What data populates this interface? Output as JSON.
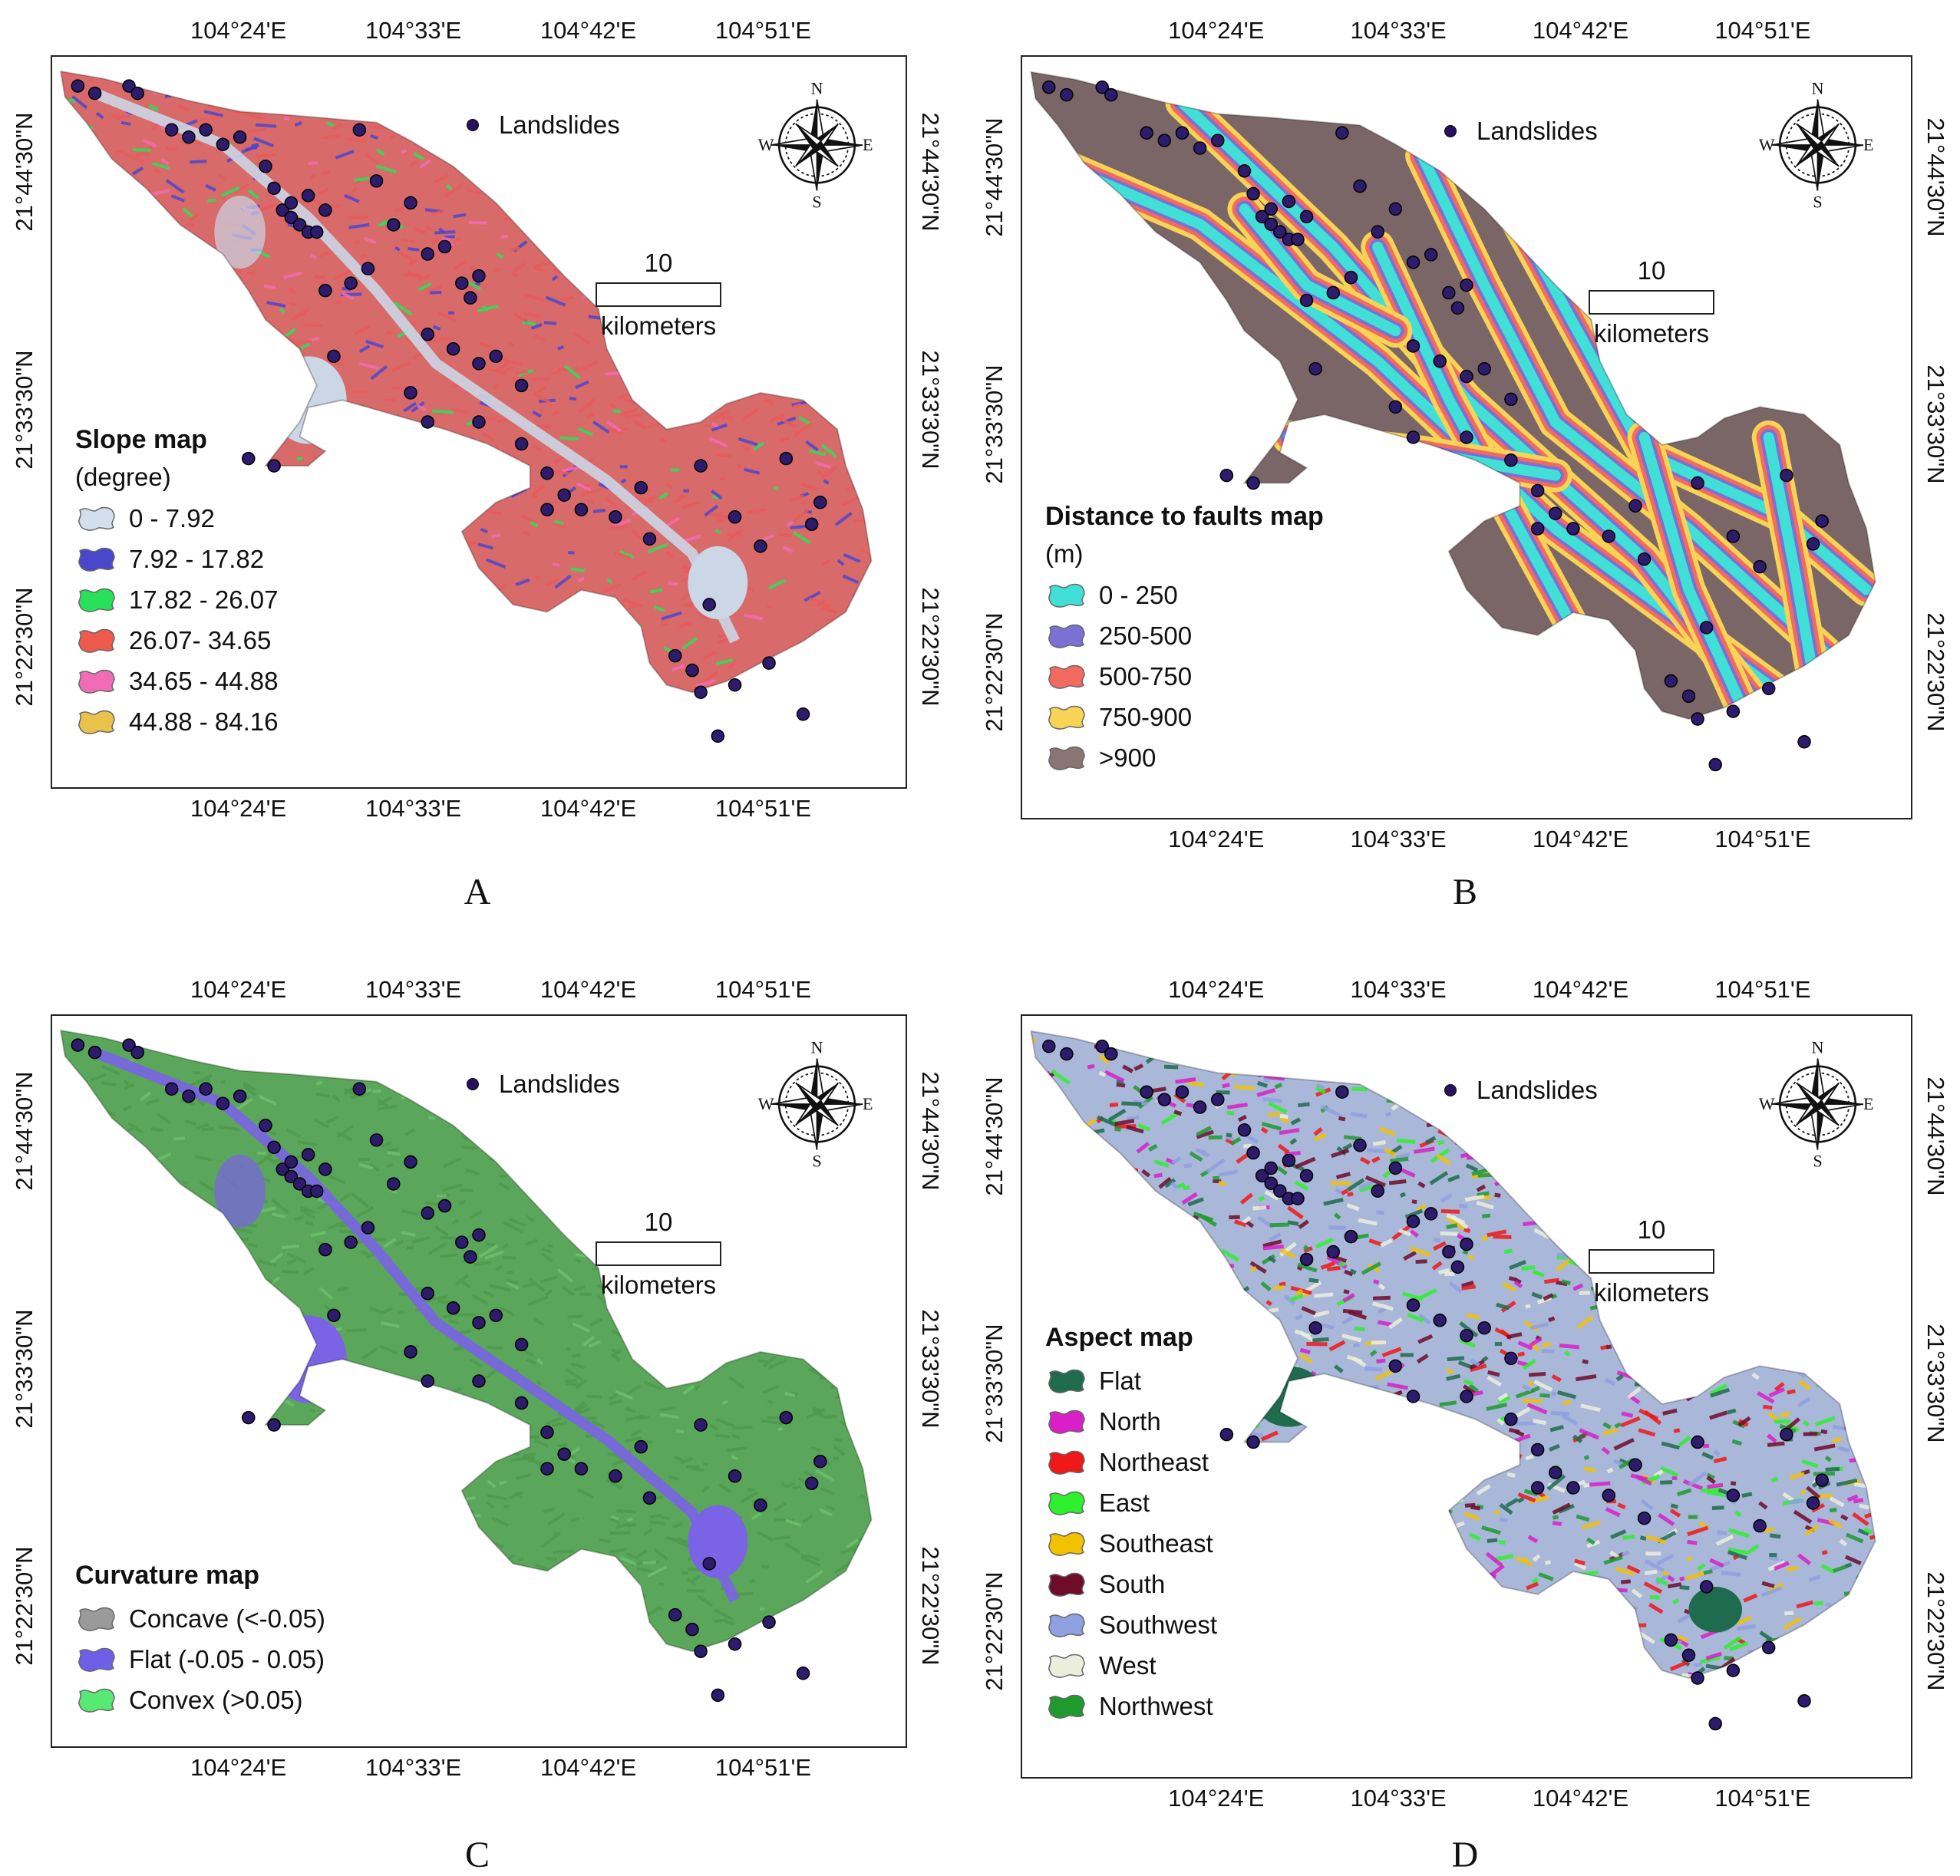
{
  "common": {
    "lon_labels": [
      "104°24'E",
      "104°33'E",
      "104°42'E",
      "104°51'E"
    ],
    "lat_labels": [
      "21°44'30\"N",
      "21°33'30\"N",
      "21°22'30\"N"
    ],
    "landslides_label": "Landslides",
    "scale_value": "10",
    "scale_unit": "kilometers",
    "compass": {
      "n": "N",
      "s": "S",
      "e": "E",
      "w": "W"
    }
  },
  "panels": [
    {
      "letter": "A",
      "legend_title": "Slope map",
      "legend_unit": "(degree)",
      "terrain": {
        "base": "#d96a6a",
        "accent": "#e85a5a",
        "patch": "#4f4fd0",
        "flat": "#cbd6e6",
        "extra": "#3bdb62"
      },
      "legend": [
        {
          "label": "0 - 7.92",
          "color": "#d4dfee"
        },
        {
          "label": "7.92 - 17.82",
          "color": "#4a47cc"
        },
        {
          "label": "17.82 - 26.07",
          "color": "#29e05a"
        },
        {
          "label": "26.07- 34.65",
          "color": "#ef5a4e"
        },
        {
          "label": "34.65 - 44.88",
          "color": "#f26bb5"
        },
        {
          "label": "44.88 - 84.16",
          "color": "#e8c24a"
        }
      ]
    },
    {
      "letter": "B",
      "legend_title": "Distance to faults map",
      "legend_unit": "(m)",
      "terrain": {
        "base": "#7a6666",
        "accent": "#6b5858",
        "patch": "#38d8d0",
        "flat": "#f0665a",
        "extra": "#f5c84a"
      },
      "legend": [
        {
          "label": "0 - 250",
          "color": "#40e0d6"
        },
        {
          "label": "250-500",
          "color": "#7b70d4"
        },
        {
          "label": "500-750",
          "color": "#f26a60"
        },
        {
          "label": "750-900",
          "color": "#f7d455"
        },
        {
          "label": ">900",
          "color": "#8a7474"
        }
      ]
    },
    {
      "letter": "C",
      "legend_title": "Curvature map",
      "legend_unit": "",
      "terrain": {
        "base": "#5aa65a",
        "accent": "#4e9a4e",
        "patch": "#7b63e6",
        "flat": "#7b63e6",
        "extra": "#6cbf6c"
      },
      "legend": [
        {
          "label": "Concave (<-0.05)",
          "color": "#9a9a9a"
        },
        {
          "label": "Flat (-0.05 - 0.05)",
          "color": "#6e5fe8"
        },
        {
          "label": "Convex (>0.05)",
          "color": "#58e874"
        }
      ]
    },
    {
      "letter": "D",
      "legend_title": "Aspect map",
      "legend_unit": "",
      "terrain": {
        "base": "#a9b7d8",
        "accent": "#e23ab0",
        "patch": "#2fd63a",
        "flat": "#e63030",
        "extra": "#f0d020"
      },
      "legend": [
        {
          "label": "Flat",
          "color": "#1f6b4e"
        },
        {
          "label": "North",
          "color": "#d81fc8"
        },
        {
          "label": "Northeast",
          "color": "#f01818"
        },
        {
          "label": "East",
          "color": "#2ff02f"
        },
        {
          "label": "Southeast",
          "color": "#f2c200"
        },
        {
          "label": "South",
          "color": "#6e0c2a"
        },
        {
          "label": "Southwest",
          "color": "#8fa0e0"
        },
        {
          "label": "West",
          "color": "#eceedc"
        },
        {
          "label": "Northwest",
          "color": "#1f9a2f"
        }
      ]
    }
  ]
}
